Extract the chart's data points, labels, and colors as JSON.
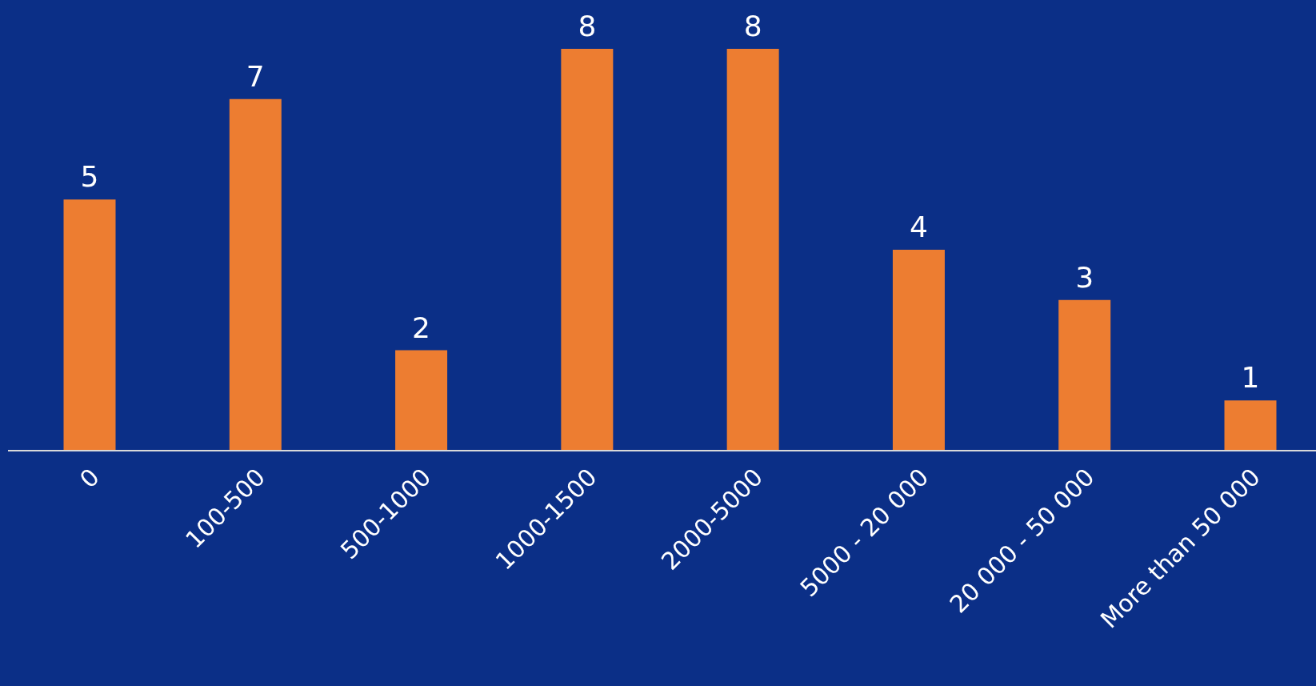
{
  "chart_data": {
    "type": "bar",
    "categories": [
      "0",
      "100-500",
      "500-1000",
      "1000-1500",
      "2000-5000",
      "5000 - 20 000",
      "20 000 - 50 000",
      "More than 50 000"
    ],
    "values": [
      5,
      7,
      2,
      8,
      8,
      4,
      3,
      1
    ],
    "color": "#ed7d31",
    "data_labels": true
  }
}
